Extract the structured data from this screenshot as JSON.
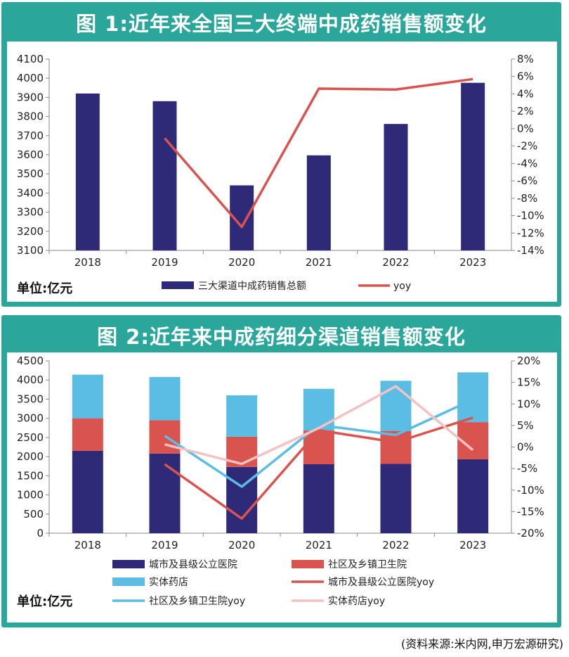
{
  "chart_data": [
    {
      "type": "bar",
      "title": "图 1:近年来全国三大终端中成药销售额变化",
      "unit_label": "单位:亿元",
      "categories": [
        "2018",
        "2019",
        "2020",
        "2021",
        "2022",
        "2023"
      ],
      "ylim": [
        3100,
        4100
      ],
      "yticks": [
        "3100",
        "3200",
        "3300",
        "3400",
        "3500",
        "3600",
        "3700",
        "3800",
        "3900",
        "4000",
        "4100"
      ],
      "y2lim": [
        -14,
        8
      ],
      "y2ticks": [
        "-14%",
        "-12%",
        "-10%",
        "-8%",
        "-6%",
        "-4%",
        "-2%",
        "0%",
        "2%",
        "4%",
        "6%",
        "8%"
      ],
      "series": [
        {
          "name": "三大渠道中成药销售总额",
          "type": "bar",
          "color": "#2e2a78",
          "values": [
            3920,
            3880,
            3440,
            3597,
            3761,
            3976
          ]
        },
        {
          "name": "yoy",
          "type": "line",
          "axis": "right",
          "color": "#d9534f",
          "values": [
            null,
            -1.1,
            -11.3,
            4.6,
            4.5,
            5.7
          ]
        }
      ],
      "legend": "bottom"
    },
    {
      "type": "bar",
      "title": "图 2:近年来中成药细分渠道销售额变化",
      "unit_label": "单位:亿元",
      "categories": [
        "2018",
        "2019",
        "2020",
        "2021",
        "2022",
        "2023"
      ],
      "ylim": [
        0,
        4500
      ],
      "yticks": [
        "0",
        "500",
        "1000",
        "1500",
        "2000",
        "2500",
        "3000",
        "3500",
        "4000",
        "4500"
      ],
      "y2lim": [
        -20,
        20
      ],
      "y2ticks": [
        "-20%",
        "-15%",
        "-10%",
        "-5%",
        "0%",
        "5%",
        "10%",
        "15%",
        "20%"
      ],
      "stacked_series": [
        {
          "name": "城市及县级公立医院",
          "color": "#2e2a78",
          "values": [
            2150,
            2080,
            1730,
            1800,
            1810,
            1930
          ]
        },
        {
          "name": "社区及乡镇卫生院",
          "color": "#d9534f",
          "values": [
            850,
            870,
            790,
            880,
            860,
            970
          ]
        },
        {
          "name": "实体药店",
          "color": "#5bbde4",
          "values": [
            1140,
            1130,
            1080,
            1090,
            1310,
            1300
          ]
        }
      ],
      "line_series": [
        {
          "name": "城市及县级公立医院yoy",
          "color": "#d9534f",
          "values": [
            null,
            -4.0,
            -16.6,
            3.9,
            1.1,
            6.8
          ]
        },
        {
          "name": "社区及乡镇卫生院yoy",
          "color": "#5bbde4",
          "values": [
            null,
            2.6,
            -9.2,
            5.1,
            2.8,
            11.0
          ]
        },
        {
          "name": "实体药店yoy",
          "color": "#f4c2c2",
          "values": [
            null,
            0.6,
            -3.9,
            4.4,
            14.1,
            -0.7
          ]
        }
      ],
      "legend": "bottom"
    }
  ],
  "source": "(资料来源:米内网,申万宏源研究)"
}
